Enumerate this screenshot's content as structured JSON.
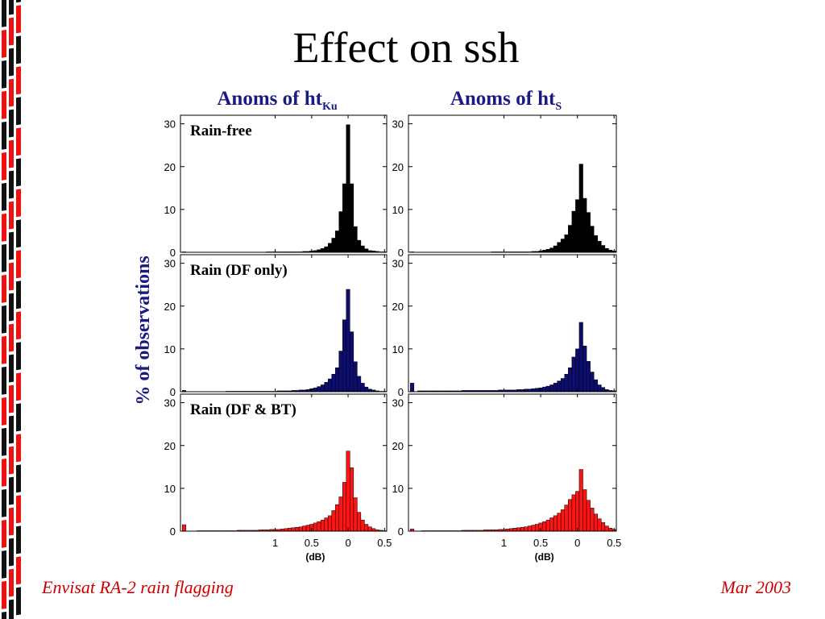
{
  "slide": {
    "title": "Effect on ssh",
    "footer_left": "Envisat RA-2 rain flagging",
    "footer_right": "Mar 2003"
  },
  "colors": {
    "stripe_red": "#ee1111",
    "stripe_black": "#111111",
    "title_blue": "#1a1a80",
    "footer_red": "#cc0000"
  },
  "chart_data": {
    "type": "bar",
    "ylabel": "% of observations",
    "xlabel": "(dB)",
    "ylim": [
      0,
      32
    ],
    "yticks": [
      0,
      10,
      20,
      30
    ],
    "xtick_labels": [
      "1",
      "0.5",
      "0",
      "0.5"
    ],
    "x_bins": [
      -2.25,
      -2.2,
      -2.15,
      -2.1,
      -2.05,
      -2.0,
      -1.95,
      -1.9,
      -1.85,
      -1.8,
      -1.75,
      -1.7,
      -1.65,
      -1.6,
      -1.55,
      -1.5,
      -1.45,
      -1.4,
      -1.35,
      -1.3,
      -1.25,
      -1.2,
      -1.15,
      -1.1,
      -1.05,
      -1.0,
      -0.95,
      -0.9,
      -0.85,
      -0.8,
      -0.75,
      -0.7,
      -0.65,
      -0.6,
      -0.55,
      -0.5,
      -0.45,
      -0.4,
      -0.35,
      -0.3,
      -0.25,
      -0.2,
      -0.15,
      -0.1,
      -0.05,
      0.0,
      0.05,
      0.1,
      0.15,
      0.2,
      0.25,
      0.3,
      0.35,
      0.4,
      0.45,
      0.5
    ],
    "columns": [
      {
        "title_main": "Anoms of  ht",
        "title_sub": "Ku",
        "panels": [
          {
            "label": "Rain-free",
            "color": "#000000",
            "values": [
              0.1,
              0,
              0,
              0,
              0,
              0,
              0,
              0,
              0,
              0,
              0,
              0,
              0,
              0,
              0,
              0,
              0,
              0,
              0,
              0,
              0,
              0,
              0,
              0.1,
              0.1,
              0.1,
              0.1,
              0.1,
              0.1,
              0.1,
              0.1,
              0.1,
              0.1,
              0.2,
              0.2,
              0.3,
              0.4,
              0.6,
              0.9,
              1.3,
              2.1,
              3.3,
              5,
              9.5,
              16,
              29.8,
              16,
              6,
              2.8,
              1.5,
              0.8,
              0.4,
              0.3,
              0.2,
              0.1,
              0.1
            ]
          },
          {
            "label": "Rain (DF only)",
            "color": "#0d0d70",
            "values": [
              0.3,
              0,
              0,
              0,
              0,
              0,
              0,
              0,
              0,
              0,
              0,
              0,
              0.1,
              0.1,
              0.1,
              0.1,
              0.1,
              0.1,
              0.1,
              0.1,
              0.1,
              0.1,
              0.1,
              0.1,
              0.1,
              0.1,
              0.2,
              0.2,
              0.2,
              0.2,
              0.3,
              0.3,
              0.4,
              0.4,
              0.5,
              0.7,
              0.9,
              1.2,
              1.6,
              2.2,
              3,
              4.1,
              5.6,
              9.5,
              16.8,
              23.9,
              14,
              7,
              3.6,
              2,
              1.1,
              0.6,
              0.4,
              0.2,
              0.1,
              0.1
            ]
          },
          {
            "label": "Rain (DF & BT)",
            "color": "#ff1414",
            "values": [
              1.5,
              0,
              0,
              0,
              0.1,
              0.1,
              0.1,
              0.1,
              0.1,
              0.1,
              0.1,
              0.1,
              0.1,
              0.1,
              0.1,
              0.2,
              0.2,
              0.2,
              0.2,
              0.2,
              0.2,
              0.3,
              0.3,
              0.3,
              0.4,
              0.4,
              0.4,
              0.5,
              0.6,
              0.7,
              0.8,
              0.9,
              1,
              1.2,
              1.4,
              1.6,
              1.9,
              2.2,
              2.6,
              3.1,
              3.6,
              4.8,
              6.2,
              8,
              11.4,
              18.7,
              14.8,
              7.8,
              4.4,
              2.6,
              1.6,
              1,
              0.6,
              0.3,
              0.2,
              0.1
            ]
          }
        ]
      },
      {
        "title_main": "Anoms of  ht",
        "title_sub": "S",
        "panels": [
          {
            "label": "",
            "color": "#000000",
            "values": [
              0.1,
              0,
              0,
              0,
              0,
              0,
              0,
              0,
              0,
              0,
              0,
              0,
              0,
              0,
              0,
              0,
              0,
              0,
              0,
              0,
              0,
              0,
              0.1,
              0.1,
              0.1,
              0.1,
              0.1,
              0.1,
              0.1,
              0.1,
              0.1,
              0.1,
              0.1,
              0.2,
              0.2,
              0.3,
              0.5,
              0.7,
              1,
              1.5,
              2.3,
              3.1,
              4.1,
              6.3,
              9.6,
              12.3,
              20.6,
              12.6,
              9.3,
              6.1,
              3.9,
              2.6,
              1.6,
              0.9,
              0.5,
              0.3
            ]
          },
          {
            "label": "",
            "color": "#0d0d70",
            "values": [
              2,
              0,
              0.2,
              0.2,
              0.2,
              0.2,
              0.2,
              0.2,
              0.2,
              0.2,
              0.2,
              0.2,
              0.2,
              0.2,
              0.3,
              0.3,
              0.3,
              0.3,
              0.3,
              0.3,
              0.3,
              0.3,
              0.3,
              0.3,
              0.4,
              0.4,
              0.4,
              0.4,
              0.4,
              0.5,
              0.5,
              0.6,
              0.6,
              0.7,
              0.8,
              0.9,
              1.1,
              1.3,
              1.6,
              2,
              2.5,
              3.1,
              4.1,
              5.6,
              8.1,
              10,
              16.2,
              10.7,
              7.1,
              4.6,
              2.8,
              1.6,
              1,
              0.5,
              0.3,
              0.2
            ]
          },
          {
            "label": "",
            "color": "#ff1414",
            "values": [
              0.5,
              0,
              0,
              0.1,
              0.1,
              0.1,
              0.1,
              0.1,
              0.1,
              0.1,
              0.1,
              0.1,
              0.1,
              0.1,
              0.2,
              0.2,
              0.2,
              0.2,
              0.2,
              0.2,
              0.3,
              0.3,
              0.3,
              0.3,
              0.4,
              0.4,
              0.5,
              0.6,
              0.7,
              0.8,
              0.9,
              1,
              1.2,
              1.4,
              1.6,
              1.9,
              2.2,
              2.6,
              3.1,
              3.6,
              4.2,
              5,
              6.1,
              7.4,
              8.5,
              9.3,
              14.4,
              9.7,
              7.2,
              5.4,
              4,
              2.9,
              2,
              1.2,
              0.7,
              0.4
            ]
          }
        ]
      }
    ]
  }
}
